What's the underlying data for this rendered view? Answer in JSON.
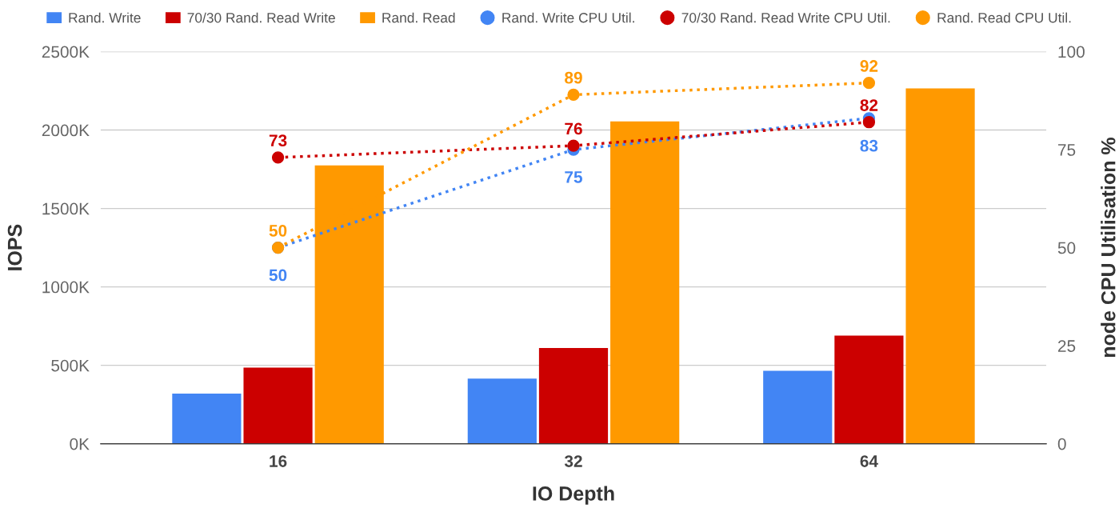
{
  "chart_data": {
    "type": "bar",
    "xlabel": "IO Depth",
    "ylabel": "IOPS",
    "y2label": "node CPU Utilisation %",
    "categories": [
      "16",
      "32",
      "64"
    ],
    "series": [
      {
        "name": "Rand. Write",
        "color": "#4285f4",
        "values": [
          320000,
          415000,
          465000
        ]
      },
      {
        "name": "70/30 Rand. Read Write",
        "color": "#cc0000",
        "values": [
          485000,
          610000,
          690000
        ]
      },
      {
        "name": "Rand. Read",
        "color": "#ff9900",
        "values": [
          1775000,
          2055000,
          2265000
        ]
      },
      {
        "name": "Rand. Write CPU Util.",
        "type": "line",
        "axis": "y2",
        "color": "#4285f4",
        "values": [
          50,
          75,
          83
        ],
        "value_labels": [
          "50",
          "75",
          "83"
        ]
      },
      {
        "name": "70/30 Rand. Read Write CPU Util.",
        "type": "line",
        "axis": "y2",
        "color": "#cc0000",
        "values": [
          73,
          76,
          82
        ],
        "value_labels": [
          "73",
          "76",
          "82"
        ]
      },
      {
        "name": "Rand. Read CPU Util.",
        "type": "line",
        "axis": "y2",
        "color": "#ff9900",
        "values": [
          50,
          89,
          92
        ],
        "value_labels": [
          "50",
          "89",
          "92"
        ]
      }
    ],
    "ylim": [
      0,
      2500000
    ],
    "yticks": [
      {
        "value": 0,
        "label": "0K"
      },
      {
        "value": 500000,
        "label": "500K"
      },
      {
        "value": 1000000,
        "label": "1000K"
      },
      {
        "value": 1500000,
        "label": "1500K"
      },
      {
        "value": 2000000,
        "label": "2000K"
      },
      {
        "value": 2500000,
        "label": "2500K"
      }
    ],
    "y2lim": [
      0,
      100
    ],
    "y2ticks": [
      0,
      25,
      50,
      75,
      100
    ],
    "grid": "y",
    "legend": "top",
    "marker": "circle",
    "line_style": "dotted"
  }
}
